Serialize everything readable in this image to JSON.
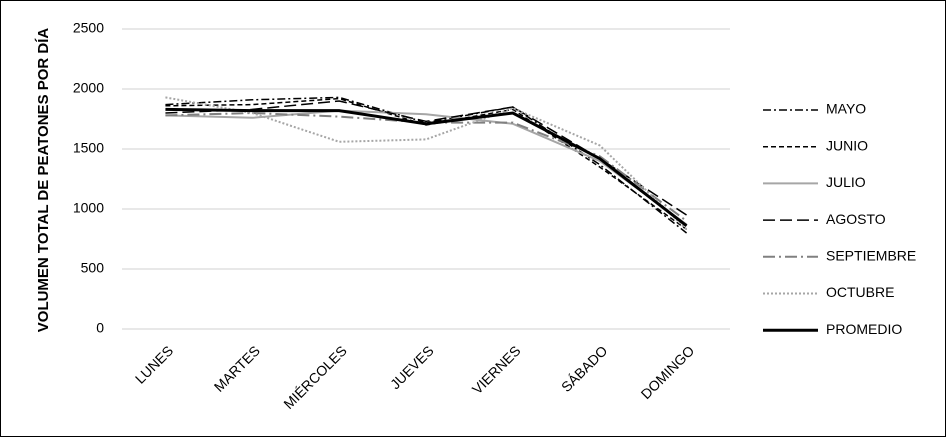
{
  "chart_data": {
    "type": "line",
    "y_label": "VOLUMEN TOTAL DE PEATONES POR DÍA",
    "categories": [
      "LUNES",
      "MARTES",
      "MIÉRCOLES",
      "JUEVES",
      "VIERNES",
      "SÁBADO",
      "DOMINGO"
    ],
    "series": [
      {
        "name": "MAYO",
        "color": "#000000",
        "dash": "dashdot",
        "width": 1.5,
        "values": [
          1870,
          1910,
          1930,
          1720,
          1850,
          1370,
          800
        ]
      },
      {
        "name": "JUNIO",
        "color": "#000000",
        "dash": "short",
        "width": 1.5,
        "values": [
          1860,
          1870,
          1920,
          1700,
          1830,
          1350,
          830
        ]
      },
      {
        "name": "JULIO",
        "color": "#a6a6a6",
        "dash": "solid",
        "width": 2,
        "values": [
          1780,
          1760,
          1820,
          1790,
          1710,
          1400,
          870
        ]
      },
      {
        "name": "AGOSTO",
        "color": "#000000",
        "dash": "long",
        "width": 1.5,
        "values": [
          1800,
          1830,
          1900,
          1730,
          1850,
          1420,
          950
        ]
      },
      {
        "name": "SEPTIEMBRE",
        "color": "#808080",
        "dash": "longdashdot",
        "width": 2,
        "values": [
          1780,
          1800,
          1770,
          1720,
          1720,
          1440,
          900
        ]
      },
      {
        "name": "OCTUBRE",
        "color": "#a6a6a6",
        "dash": "dot",
        "width": 2,
        "values": [
          1930,
          1800,
          1560,
          1580,
          1840,
          1530,
          830
        ]
      },
      {
        "name": "PROMEDIO",
        "color": "#000000",
        "dash": "solid",
        "width": 3,
        "values": [
          1830,
          1820,
          1820,
          1710,
          1800,
          1420,
          860
        ]
      }
    ],
    "ylim": [
      0,
      2500
    ],
    "yticks": [
      0,
      500,
      1000,
      1500,
      2000,
      2500
    ],
    "grid": true,
    "legend": "right"
  }
}
